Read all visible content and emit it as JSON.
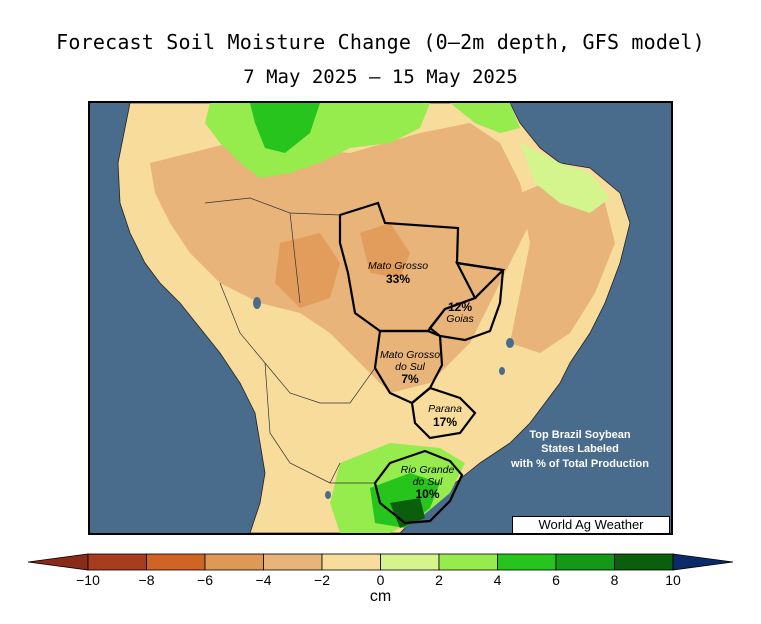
{
  "title": "Forecast Soil Moisture Change (0—2m depth, GFS model)",
  "subtitle": "7 May 2025 — 15 May 2025",
  "states": [
    {
      "id": "mato-grosso",
      "name": "Mato Grosso",
      "pct": "33%"
    },
    {
      "id": "goias",
      "name": "Goias",
      "pct": "12%"
    },
    {
      "id": "mato-grosso-do-sul",
      "name": "Mato Grosso do Sul",
      "pct": "7%"
    },
    {
      "id": "parana",
      "name": "Parana",
      "pct": "17%"
    },
    {
      "id": "rio-grande-do-sul",
      "name": "Rio Grande do Sul",
      "pct": "10%"
    }
  ],
  "state_labels": {
    "mato_grosso_name": "Mato Grosso",
    "mato_grosso_pct": "33%",
    "goias_name": "Goias",
    "goias_pct": "12%",
    "mgs_name_1": "Mato Grosso",
    "mgs_name_2": "do Sul",
    "mgs_pct": "7%",
    "parana_name": "Parana",
    "parana_pct": "17%",
    "rgs_name_1": "Rio Grande",
    "rgs_name_2": "do Sul",
    "rgs_pct": "10%"
  },
  "note": {
    "line1": "Top Brazil Soybean",
    "line2": "States Labeled",
    "line3": "with % of Total Production"
  },
  "watermark": "World Ag Weather",
  "colorbar": {
    "unit": "cm",
    "ticks": [
      "−10",
      "−8",
      "−6",
      "−4",
      "−2",
      "0",
      "2",
      "4",
      "6",
      "8",
      "10"
    ],
    "bins": [
      {
        "min": -10,
        "max": -8,
        "color": "#a83c1e"
      },
      {
        "min": -8,
        "max": -6,
        "color": "#d06424"
      },
      {
        "min": -6,
        "max": -4,
        "color": "#e09856"
      },
      {
        "min": -4,
        "max": -2,
        "color": "#e8b47a"
      },
      {
        "min": -2,
        "max": 0,
        "color": "#f7dc9c"
      },
      {
        "min": 0,
        "max": 2,
        "color": "#d4f58e"
      },
      {
        "min": 2,
        "max": 4,
        "color": "#96ec4c"
      },
      {
        "min": 4,
        "max": 6,
        "color": "#28c41e"
      },
      {
        "min": 6,
        "max": 8,
        "color": "#139818"
      },
      {
        "min": 8,
        "max": 10,
        "color": "#0a5e0c"
      }
    ],
    "under_color": "#8a2a1a",
    "over_color": "#0c2a6a"
  },
  "colors": {
    "ocean": "#4a6c8c",
    "land_dry": "#e8b47a",
    "land_slight": "#f7dc9c"
  }
}
